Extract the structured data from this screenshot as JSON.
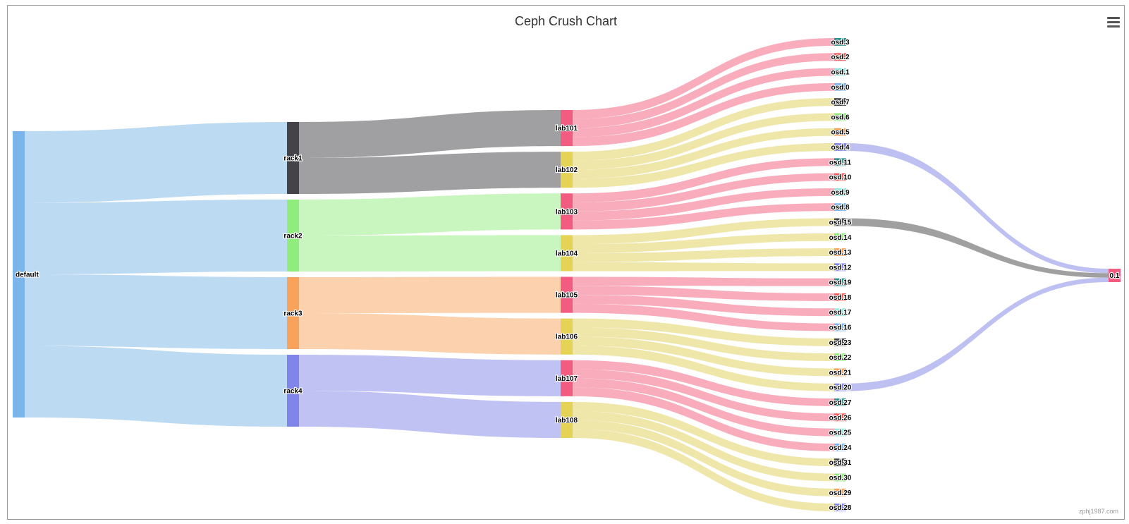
{
  "chart": {
    "title": "Ceph Crush Chart",
    "credits": "zphj1987.com",
    "menu_icon": "hamburger-menu-icon"
  },
  "colors": {
    "default": "#7cb5ec",
    "rack1": "#434348",
    "rack2": "#90ed7d",
    "rack3": "#f7a35c",
    "rack4": "#8085e9",
    "labPink": "#f15c80",
    "labYellow": "#e4d354",
    "host": "#f15c80",
    "osdPalette": [
      "#2b908f",
      "#f45b5b",
      "#91e8e1",
      "#7cb5ec",
      "#434348",
      "#90ed7d",
      "#f7a35c",
      "#8085e9"
    ]
  },
  "chart_data": {
    "type": "sankey",
    "title": "Ceph Crush Chart",
    "columns": [
      [
        "default"
      ],
      [
        "rack1",
        "rack2",
        "rack3",
        "rack4"
      ],
      [
        "lab101",
        "lab102",
        "lab103",
        "lab104",
        "lab105",
        "lab106",
        "lab107",
        "lab108"
      ],
      [
        "osd.3",
        "osd.2",
        "osd.1",
        "osd.0",
        "osd.7",
        "osd.6",
        "osd.5",
        "osd.4",
        "osd.11",
        "osd.10",
        "osd.9",
        "osd.8",
        "osd.15",
        "osd.14",
        "osd.13",
        "osd.12",
        "osd.19",
        "osd.18",
        "osd.17",
        "osd.16",
        "osd.23",
        "osd.22",
        "osd.21",
        "osd.20",
        "osd.27",
        "osd.26",
        "osd.25",
        "osd.24",
        "osd.31",
        "osd.30",
        "osd.29",
        "osd.28"
      ],
      [
        "0.1"
      ]
    ],
    "links": [
      {
        "from": "default",
        "to": "rack1",
        "weight": 4
      },
      {
        "from": "default",
        "to": "rack2",
        "weight": 4
      },
      {
        "from": "default",
        "to": "rack3",
        "weight": 4
      },
      {
        "from": "default",
        "to": "rack4",
        "weight": 4
      },
      {
        "from": "rack1",
        "to": "lab101",
        "weight": 2
      },
      {
        "from": "rack1",
        "to": "lab102",
        "weight": 2
      },
      {
        "from": "rack2",
        "to": "lab103",
        "weight": 2
      },
      {
        "from": "rack2",
        "to": "lab104",
        "weight": 2
      },
      {
        "from": "rack3",
        "to": "lab105",
        "weight": 2
      },
      {
        "from": "rack3",
        "to": "lab106",
        "weight": 2
      },
      {
        "from": "rack4",
        "to": "lab107",
        "weight": 2
      },
      {
        "from": "rack4",
        "to": "lab108",
        "weight": 2
      },
      {
        "from": "lab101",
        "to": "osd.3",
        "weight": 0.5
      },
      {
        "from": "lab101",
        "to": "osd.2",
        "weight": 0.5
      },
      {
        "from": "lab101",
        "to": "osd.1",
        "weight": 0.5
      },
      {
        "from": "lab101",
        "to": "osd.0",
        "weight": 0.5
      },
      {
        "from": "lab102",
        "to": "osd.7",
        "weight": 0.5
      },
      {
        "from": "lab102",
        "to": "osd.6",
        "weight": 0.5
      },
      {
        "from": "lab102",
        "to": "osd.5",
        "weight": 0.5
      },
      {
        "from": "lab102",
        "to": "osd.4",
        "weight": 0.5
      },
      {
        "from": "lab103",
        "to": "osd.11",
        "weight": 0.5
      },
      {
        "from": "lab103",
        "to": "osd.10",
        "weight": 0.5
      },
      {
        "from": "lab103",
        "to": "osd.9",
        "weight": 0.5
      },
      {
        "from": "lab103",
        "to": "osd.8",
        "weight": 0.5
      },
      {
        "from": "lab104",
        "to": "osd.15",
        "weight": 0.5
      },
      {
        "from": "lab104",
        "to": "osd.14",
        "weight": 0.5
      },
      {
        "from": "lab104",
        "to": "osd.13",
        "weight": 0.5
      },
      {
        "from": "lab104",
        "to": "osd.12",
        "weight": 0.5
      },
      {
        "from": "lab105",
        "to": "osd.19",
        "weight": 0.5
      },
      {
        "from": "lab105",
        "to": "osd.18",
        "weight": 0.5
      },
      {
        "from": "lab105",
        "to": "osd.17",
        "weight": 0.5
      },
      {
        "from": "lab105",
        "to": "osd.16",
        "weight": 0.5
      },
      {
        "from": "lab106",
        "to": "osd.23",
        "weight": 0.5
      },
      {
        "from": "lab106",
        "to": "osd.22",
        "weight": 0.5
      },
      {
        "from": "lab106",
        "to": "osd.21",
        "weight": 0.5
      },
      {
        "from": "lab106",
        "to": "osd.20",
        "weight": 0.5
      },
      {
        "from": "lab107",
        "to": "osd.27",
        "weight": 0.5
      },
      {
        "from": "lab107",
        "to": "osd.26",
        "weight": 0.5
      },
      {
        "from": "lab107",
        "to": "osd.25",
        "weight": 0.5
      },
      {
        "from": "lab107",
        "to": "osd.24",
        "weight": 0.5
      },
      {
        "from": "lab108",
        "to": "osd.31",
        "weight": 0.5
      },
      {
        "from": "lab108",
        "to": "osd.30",
        "weight": 0.5
      },
      {
        "from": "lab108",
        "to": "osd.29",
        "weight": 0.5
      },
      {
        "from": "lab108",
        "to": "osd.28",
        "weight": 0.5
      },
      {
        "from": "osd.4",
        "to": "0.1",
        "weight": 0.5
      },
      {
        "from": "osd.15",
        "to": "0.1",
        "weight": 0.5
      },
      {
        "from": "osd.20",
        "to": "0.1",
        "weight": 0.5
      }
    ]
  }
}
